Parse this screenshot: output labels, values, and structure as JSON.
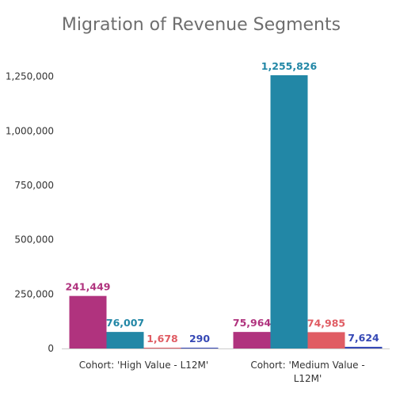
{
  "chart_data": {
    "type": "bar",
    "title": "Migration of Revenue Segments",
    "xlabel": "",
    "ylabel": "",
    "categories": [
      [
        "Cohort: 'High Value - L12M'"
      ],
      [
        "Cohort: 'Medium Value -",
        "L12M'"
      ]
    ],
    "series": [
      {
        "color": "#b0337e",
        "values": [
          241449,
          75964
        ]
      },
      {
        "color": "#2287a6",
        "values": [
          76007,
          1255826
        ]
      },
      {
        "color": "#e05c63",
        "values": [
          1678,
          74985
        ]
      },
      {
        "color": "#3548b5",
        "values": [
          290,
          7624
        ]
      }
    ],
    "data_labels": [
      [
        "241,449",
        "75,964"
      ],
      [
        "76,007",
        "1,255,826"
      ],
      [
        "1,678",
        "74,985"
      ],
      [
        "290",
        "7,624"
      ]
    ],
    "yticks": [
      0,
      250000,
      500000,
      750000,
      1000000,
      1250000
    ],
    "ytick_labels": [
      "0",
      "250,000",
      "500,000",
      "750,000",
      "1,000,000",
      "1,250,000"
    ],
    "ylim": [
      0,
      1300000
    ],
    "grid": false,
    "legend": "none"
  }
}
